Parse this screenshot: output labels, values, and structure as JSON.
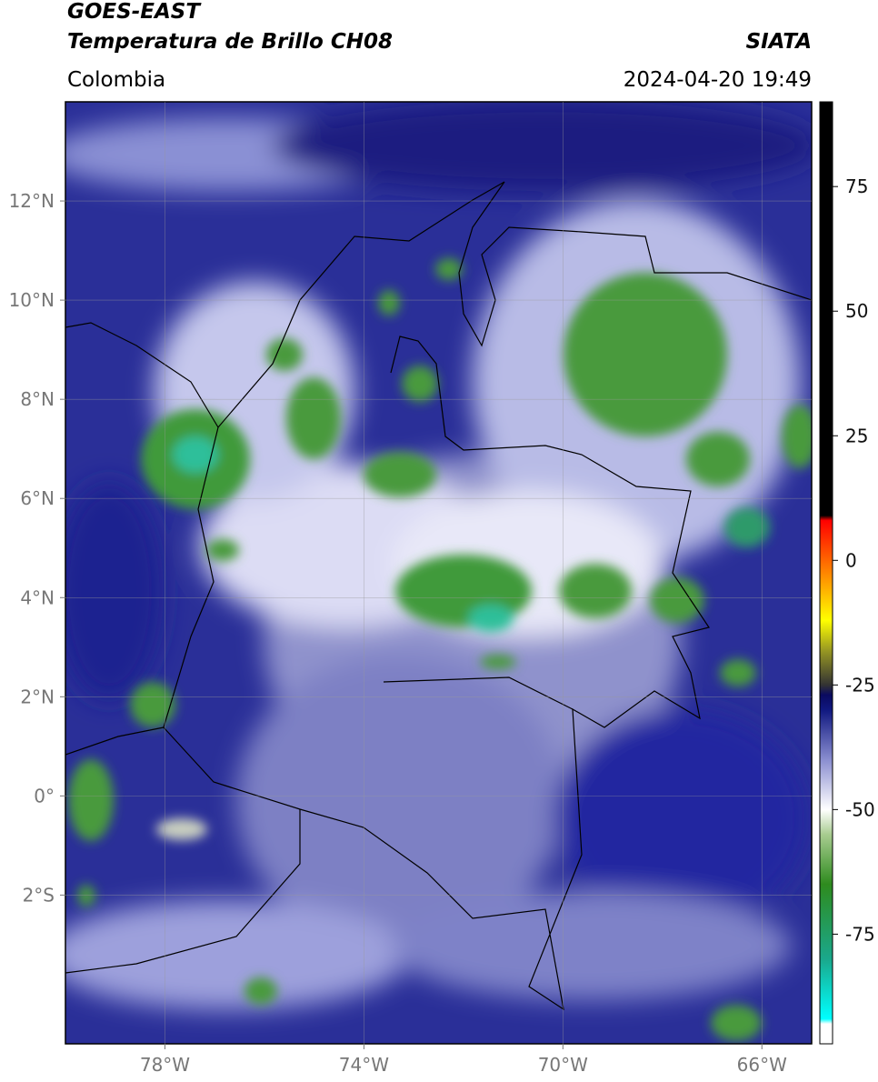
{
  "header": {
    "satellite": "GOES-EAST",
    "product": "Temperatura de Brillo CH08",
    "agency": "SIATA",
    "region": "Colombia",
    "datetime": "2024-04-20 19:49"
  },
  "map": {
    "xlim": [
      -80,
      -65
    ],
    "ylim": [
      -5,
      14
    ],
    "xticks": [
      {
        "value": -78,
        "label": "78°W"
      },
      {
        "value": -74,
        "label": "74°W"
      },
      {
        "value": -70,
        "label": "70°W"
      },
      {
        "value": -66,
        "label": "66°W"
      }
    ],
    "yticks": [
      {
        "value": 12,
        "label": "12°N"
      },
      {
        "value": 10,
        "label": "10°N"
      },
      {
        "value": 8,
        "label": "8°N"
      },
      {
        "value": 6,
        "label": "6°N"
      },
      {
        "value": 4,
        "label": "4°N"
      },
      {
        "value": 2,
        "label": "2°N"
      },
      {
        "value": 0,
        "label": "0°"
      },
      {
        "value": -2,
        "label": "2°S"
      }
    ],
    "grid": true
  },
  "colorbar": {
    "lim": [
      -97,
      92
    ],
    "ticks": [
      75,
      50,
      25,
      0,
      -25,
      -50,
      -75
    ],
    "colormap": [
      {
        "value": -97,
        "color": "#ffffff"
      },
      {
        "value": -93,
        "color": "#ffffff"
      },
      {
        "value": -92,
        "color": "#00ffff"
      },
      {
        "value": -80,
        "color": "#1aa88c"
      },
      {
        "value": -65,
        "color": "#2e8b1e"
      },
      {
        "value": -55,
        "color": "#a8cc90"
      },
      {
        "value": -50,
        "color": "#ffffff"
      },
      {
        "value": -40,
        "color": "#8a8ed0"
      },
      {
        "value": -30,
        "color": "#101880"
      },
      {
        "value": -27,
        "color": "#0a0a60"
      },
      {
        "value": -25,
        "color": "#333333"
      },
      {
        "value": -18,
        "color": "#999922"
      },
      {
        "value": -12,
        "color": "#ffff00"
      },
      {
        "value": -4,
        "color": "#ff9900"
      },
      {
        "value": 8,
        "color": "#ff0000"
      },
      {
        "value": 9,
        "color": "#000000"
      },
      {
        "value": 92,
        "color": "#000000"
      }
    ]
  }
}
